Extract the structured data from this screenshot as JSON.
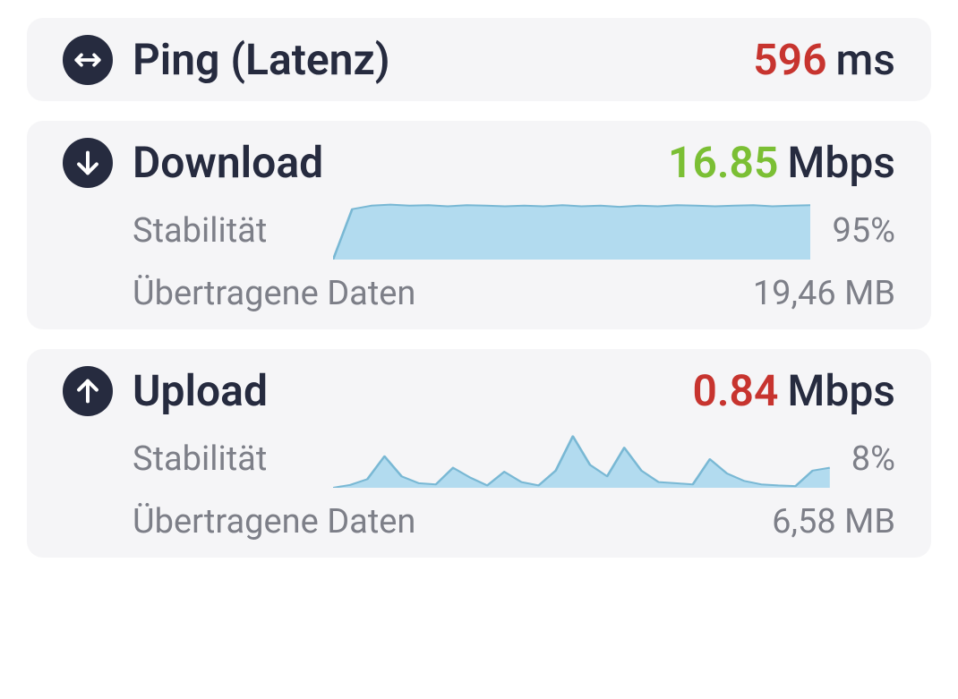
{
  "colors": {
    "card_bg": "#f5f5f7",
    "text_dark": "#262b3f",
    "text_muted": "#7d7f88",
    "accent_red": "#c7342f",
    "accent_green": "#7bbf34",
    "chart_fill": "#b2dbef",
    "chart_stroke": "#79b8d4"
  },
  "ping": {
    "title": "Ping (Latenz)",
    "value": "596",
    "unit": "ms",
    "value_color": "#c7342f"
  },
  "download": {
    "title": "Download",
    "value": "16.85",
    "unit": "Mbps",
    "value_color": "#7bbf34",
    "stability": {
      "label": "Stabilität",
      "value": "95%",
      "chart": {
        "type": "area",
        "fill": "#b2dbef",
        "stroke": "#79b8d4",
        "stroke_width": 2,
        "ylim": [
          0,
          100
        ],
        "points": [
          0,
          88,
          94,
          96,
          94,
          95,
          93,
          95,
          94,
          93,
          94,
          93,
          95,
          93,
          94,
          92,
          94,
          93,
          95,
          94,
          93,
          94,
          95,
          93,
          94,
          95
        ]
      }
    },
    "transferred": {
      "label": "Übertragene Daten",
      "value": "19,46 MB"
    }
  },
  "upload": {
    "title": "Upload",
    "value": "0.84",
    "unit": "Mbps",
    "value_color": "#c7342f",
    "stability": {
      "label": "Stabilität",
      "value": "8%",
      "chart": {
        "type": "area",
        "fill": "#b2dbef",
        "stroke": "#79b8d4",
        "stroke_width": 2,
        "ylim": [
          0,
          100
        ],
        "points": [
          0,
          5,
          15,
          55,
          20,
          8,
          6,
          35,
          18,
          4,
          28,
          10,
          4,
          30,
          90,
          40,
          20,
          70,
          30,
          10,
          8,
          6,
          50,
          25,
          12,
          6,
          4,
          3,
          30,
          35
        ]
      }
    },
    "transferred": {
      "label": "Übertragene Daten",
      "value": "6,58 MB"
    }
  }
}
